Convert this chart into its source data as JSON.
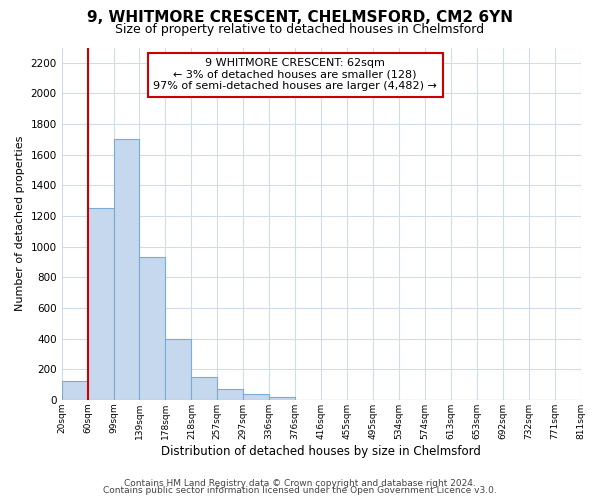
{
  "title": "9, WHITMORE CRESCENT, CHELMSFORD, CM2 6YN",
  "subtitle": "Size of property relative to detached houses in Chelmsford",
  "bar_values": [
    120,
    1250,
    1700,
    930,
    400,
    150,
    70,
    35,
    20,
    0,
    0,
    0,
    0,
    0,
    0,
    0,
    0,
    0,
    0,
    0
  ],
  "bin_labels": [
    "20sqm",
    "60sqm",
    "99sqm",
    "139sqm",
    "178sqm",
    "218sqm",
    "257sqm",
    "297sqm",
    "336sqm",
    "376sqm",
    "416sqm",
    "455sqm",
    "495sqm",
    "534sqm",
    "574sqm",
    "613sqm",
    "653sqm",
    "692sqm",
    "732sqm",
    "771sqm",
    "811sqm"
  ],
  "bar_color": "#c5d8ed",
  "bar_edge_color": "#7aadd4",
  "highlight_color": "#cc0000",
  "ylim": [
    0,
    2300
  ],
  "yticks": [
    0,
    200,
    400,
    600,
    800,
    1000,
    1200,
    1400,
    1600,
    1800,
    2000,
    2200
  ],
  "ylabel": "Number of detached properties",
  "xlabel": "Distribution of detached houses by size in Chelmsford",
  "annotation_title": "9 WHITMORE CRESCENT: 62sqm",
  "annotation_line1": "← 3% of detached houses are smaller (128)",
  "annotation_line2": "97% of semi-detached houses are larger (4,482) →",
  "annotation_box_color": "#ffffff",
  "annotation_box_edge": "#cc0000",
  "footer1": "Contains HM Land Registry data © Crown copyright and database right 2024.",
  "footer2": "Contains public sector information licensed under the Open Government Licence v3.0.",
  "bg_color": "#ffffff",
  "grid_color": "#d0dce8"
}
